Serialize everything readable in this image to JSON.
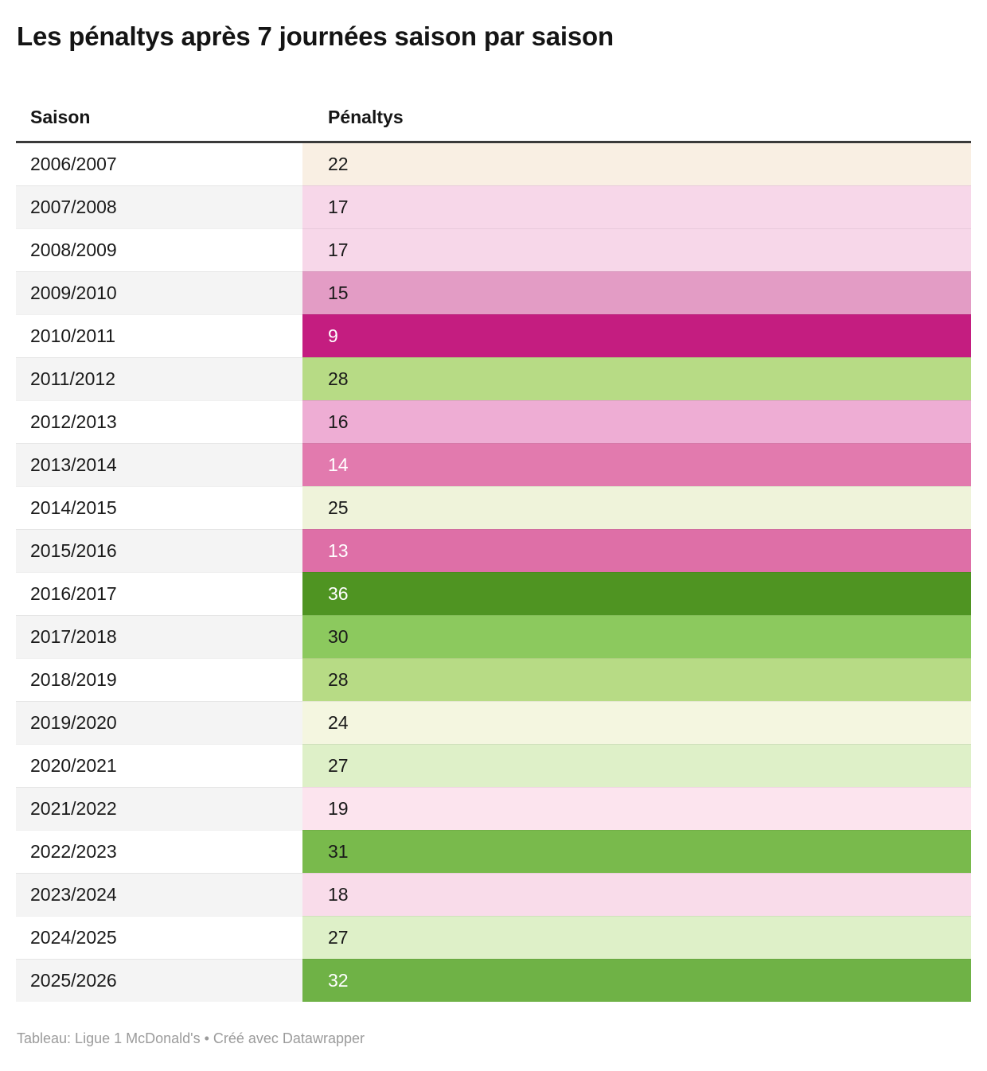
{
  "title": "Les pénaltys après 7 journées saison par saison",
  "table": {
    "columns": [
      "Saison",
      "Pénaltys"
    ],
    "rows": [
      {
        "season": "2006/2007",
        "value": "22",
        "bg": "#f9efe3",
        "fg": "#1a1a1a"
      },
      {
        "season": "2007/2008",
        "value": "17",
        "bg": "#f7d7e9",
        "fg": "#1a1a1a"
      },
      {
        "season": "2008/2009",
        "value": "17",
        "bg": "#f7d7e9",
        "fg": "#1a1a1a"
      },
      {
        "season": "2009/2010",
        "value": "15",
        "bg": "#e39cc5",
        "fg": "#1a1a1a"
      },
      {
        "season": "2010/2011",
        "value": "9",
        "bg": "#c41d80",
        "fg": "#ffffff"
      },
      {
        "season": "2011/2012",
        "value": "28",
        "bg": "#b7db85",
        "fg": "#1a1a1a"
      },
      {
        "season": "2012/2013",
        "value": "16",
        "bg": "#eeadd4",
        "fg": "#1a1a1a"
      },
      {
        "season": "2013/2014",
        "value": "14",
        "bg": "#e27aae",
        "fg": "#ffffff"
      },
      {
        "season": "2014/2015",
        "value": "25",
        "bg": "#eff3da",
        "fg": "#1a1a1a"
      },
      {
        "season": "2015/2016",
        "value": "13",
        "bg": "#de6fa7",
        "fg": "#ffffff"
      },
      {
        "season": "2016/2017",
        "value": "36",
        "bg": "#4f9422",
        "fg": "#ffffff"
      },
      {
        "season": "2017/2018",
        "value": "30",
        "bg": "#8cc95e",
        "fg": "#1a1a1a"
      },
      {
        "season": "2018/2019",
        "value": "28",
        "bg": "#b7db85",
        "fg": "#1a1a1a"
      },
      {
        "season": "2019/2020",
        "value": "24",
        "bg": "#f4f6e0",
        "fg": "#1a1a1a"
      },
      {
        "season": "2020/2021",
        "value": "27",
        "bg": "#def0c8",
        "fg": "#1a1a1a"
      },
      {
        "season": "2021/2022",
        "value": "19",
        "bg": "#fce4ee",
        "fg": "#1a1a1a"
      },
      {
        "season": "2022/2023",
        "value": "31",
        "bg": "#79ba4c",
        "fg": "#1a1a1a"
      },
      {
        "season": "2023/2024",
        "value": "18",
        "bg": "#f9dcea",
        "fg": "#1a1a1a"
      },
      {
        "season": "2024/2025",
        "value": "27",
        "bg": "#def0c8",
        "fg": "#1a1a1a"
      },
      {
        "season": "2025/2026",
        "value": "32",
        "bg": "#6fb246",
        "fg": "#ffffff"
      }
    ]
  },
  "footer": "Tableau: Ligue 1 McDonald's • Créé avec Datawrapper",
  "colors": {
    "alt_row_bg": "#f4f4f4",
    "header_rule": "#3a3a3a",
    "row_text": "#1a1a1a",
    "footer_text": "#9b9b9b",
    "scale_low_pink": "#c41d80",
    "scale_mid_cream": "#f9efe3",
    "scale_high_green": "#4f9422"
  },
  "chart_data": {
    "type": "table",
    "title": "Les pénaltys après 7 journées saison par saison",
    "columns": [
      "Saison",
      "Pénaltys"
    ],
    "categories": [
      "2006/2007",
      "2007/2008",
      "2008/2009",
      "2009/2010",
      "2010/2011",
      "2011/2012",
      "2012/2013",
      "2013/2014",
      "2014/2015",
      "2015/2016",
      "2016/2017",
      "2017/2018",
      "2018/2019",
      "2019/2020",
      "2020/2021",
      "2021/2022",
      "2022/2023",
      "2023/2024",
      "2024/2025",
      "2025/2026"
    ],
    "values": [
      22,
      17,
      17,
      15,
      9,
      28,
      16,
      14,
      25,
      13,
      36,
      30,
      28,
      24,
      27,
      19,
      31,
      18,
      27,
      32
    ],
    "value_range": [
      9,
      36
    ],
    "color_encoding": "diverging heatmap on Pénaltys column: low values pink/magenta, mid values cream, high values green",
    "footer": "Tableau: Ligue 1 McDonald's • Créé avec Datawrapper"
  }
}
